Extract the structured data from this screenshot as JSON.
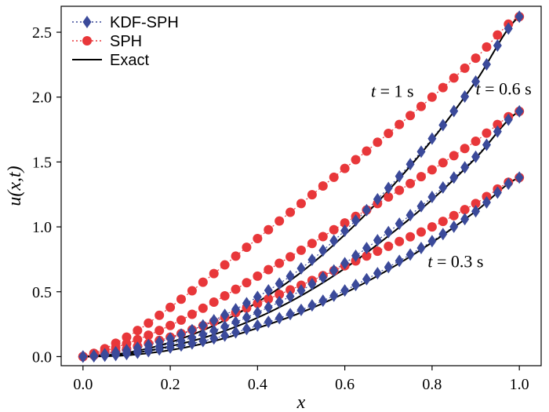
{
  "chart_data": {
    "type": "line",
    "xlabel": "x",
    "ylabel": "u(x,t)",
    "xlim": [
      -0.05,
      1.05
    ],
    "ylim": [
      -0.07,
      2.7
    ],
    "x_ticks": [
      "0.0",
      "0.2",
      "0.4",
      "0.6",
      "0.8",
      "1.0"
    ],
    "x_tick_values": [
      0,
      0.2,
      0.4,
      0.6,
      0.8,
      1.0
    ],
    "y_ticks": [
      "0.0",
      "0.5",
      "1.0",
      "1.5",
      "2.0",
      "2.5"
    ],
    "y_tick_values": [
      0,
      0.5,
      1.0,
      1.5,
      2.0,
      2.5
    ],
    "grid": false,
    "legend_position": "top-left",
    "legend": [
      {
        "label": "KDF-SPH",
        "style": "diamond-dotted",
        "color": "#3b4a9a"
      },
      {
        "label": "SPH",
        "style": "circle-dotted",
        "color": "#e8373a"
      },
      {
        "label": "Exact",
        "style": "solid",
        "color": "#000000"
      }
    ],
    "annotations": [
      {
        "prefix": "t",
        "text": " = 1 s",
        "x": 0.66,
        "y": 2.0
      },
      {
        "prefix": "t",
        "text": " = 0.6 s",
        "x": 0.9,
        "y": 2.02
      },
      {
        "prefix": "t",
        "text": " = 0.3 s",
        "x": 0.79,
        "y": 0.69
      }
    ],
    "series": [
      {
        "name": "Exact",
        "group": "t = 1 s",
        "x": [
          0,
          0.1,
          0.2,
          0.3,
          0.4,
          0.5,
          0.6,
          0.7,
          0.8,
          0.9,
          1.0
        ],
        "values": [
          0,
          0.03,
          0.11,
          0.24,
          0.42,
          0.65,
          0.94,
          1.28,
          1.67,
          2.12,
          2.62
        ]
      },
      {
        "name": "Exact",
        "group": "t = 0.6 s",
        "x": [
          0,
          0.1,
          0.2,
          0.3,
          0.4,
          0.5,
          0.6,
          0.7,
          0.8,
          0.9,
          1.0
        ],
        "values": [
          0,
          0.02,
          0.08,
          0.17,
          0.3,
          0.47,
          0.68,
          0.93,
          1.21,
          1.53,
          1.89
        ]
      },
      {
        "name": "Exact",
        "group": "t = 0.3 s",
        "x": [
          0,
          0.1,
          0.2,
          0.3,
          0.4,
          0.5,
          0.6,
          0.7,
          0.8,
          0.9,
          1.0
        ],
        "values": [
          0,
          0.01,
          0.05,
          0.12,
          0.22,
          0.34,
          0.49,
          0.67,
          0.88,
          1.12,
          1.38
        ]
      },
      {
        "name": "KDF-SPH",
        "group": "t = 1 s",
        "x": [
          0,
          0.1,
          0.2,
          0.3,
          0.4,
          0.5,
          0.6,
          0.7,
          0.8,
          0.9,
          1.0
        ],
        "values": [
          0,
          0.05,
          0.14,
          0.28,
          0.46,
          0.68,
          0.97,
          1.3,
          1.68,
          2.12,
          2.62
        ]
      },
      {
        "name": "KDF-SPH",
        "group": "t = 0.6 s",
        "x": [
          0,
          0.1,
          0.2,
          0.3,
          0.4,
          0.5,
          0.6,
          0.7,
          0.8,
          0.9,
          1.0
        ],
        "values": [
          0,
          0.03,
          0.1,
          0.2,
          0.34,
          0.51,
          0.72,
          0.96,
          1.23,
          1.54,
          1.89
        ]
      },
      {
        "name": "KDF-SPH",
        "group": "t = 0.3 s",
        "x": [
          0,
          0.1,
          0.2,
          0.3,
          0.4,
          0.5,
          0.6,
          0.7,
          0.8,
          0.9,
          1.0
        ],
        "values": [
          0,
          0.02,
          0.07,
          0.14,
          0.24,
          0.36,
          0.51,
          0.69,
          0.89,
          1.12,
          1.38
        ]
      },
      {
        "name": "SPH",
        "group": "t = 1 s",
        "x": [
          0,
          0.1,
          0.2,
          0.3,
          0.4,
          0.5,
          0.6,
          0.7,
          0.8,
          0.9,
          1.0
        ],
        "values": [
          0,
          0.15,
          0.38,
          0.64,
          0.91,
          1.18,
          1.45,
          1.72,
          2.0,
          2.3,
          2.62
        ]
      },
      {
        "name": "SPH",
        "group": "t = 0.6 s",
        "x": [
          0,
          0.1,
          0.2,
          0.3,
          0.4,
          0.5,
          0.6,
          0.7,
          0.8,
          0.9,
          1.0
        ],
        "values": [
          0,
          0.1,
          0.24,
          0.42,
          0.62,
          0.82,
          1.03,
          1.23,
          1.44,
          1.66,
          1.89
        ]
      },
      {
        "name": "SPH",
        "group": "t = 0.3 s",
        "x": [
          0,
          0.1,
          0.2,
          0.3,
          0.4,
          0.5,
          0.6,
          0.7,
          0.8,
          0.9,
          1.0
        ],
        "values": [
          0,
          0.06,
          0.15,
          0.27,
          0.41,
          0.55,
          0.7,
          0.85,
          1.0,
          1.18,
          1.38
        ]
      }
    ]
  }
}
